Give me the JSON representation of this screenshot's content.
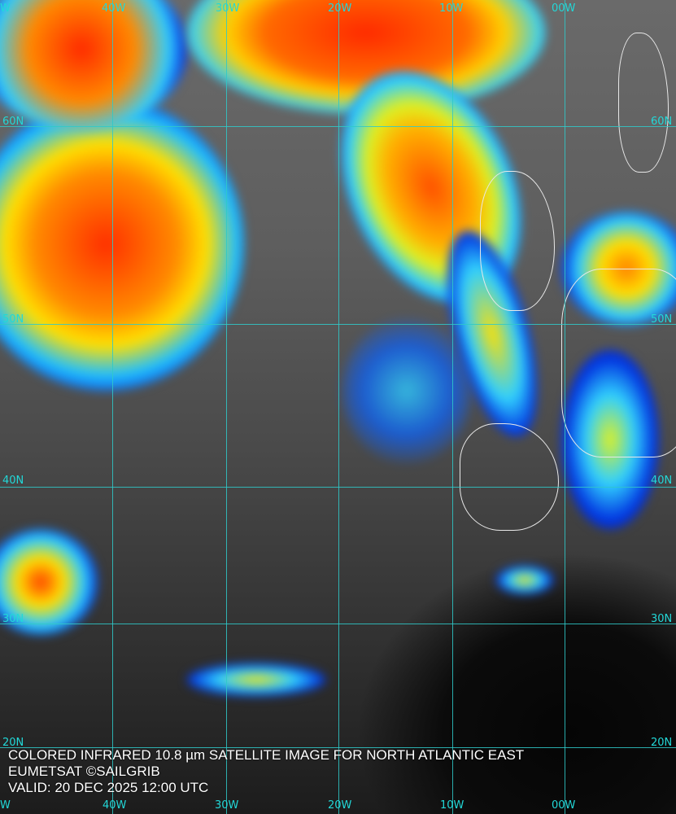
{
  "caption": {
    "title": "COLORED INFRARED 10.8 µm SATELLITE IMAGE FOR NORTH ATLANTIC EAST",
    "credit": "EUMETSAT ©SAILGRIB",
    "valid": "VALID:  20 DEC 2025 12:00 UTC"
  },
  "longitude_labels_top": [
    "W",
    "40W",
    "30W",
    "20W",
    "10W",
    "00W"
  ],
  "longitude_labels_bottom": [
    "W",
    "40W",
    "30W",
    "20W",
    "10W",
    "00W"
  ],
  "latitude_labels_left": [
    "60N",
    "50N",
    "40N",
    "30N",
    "20N"
  ],
  "latitude_labels_right": [
    "60N",
    "50N",
    "40N",
    "30N",
    "20N"
  ],
  "colors": {
    "grid": "#2fc9c9",
    "label": "#22d8d8",
    "cold_cloud_high": "#ff2a00",
    "cold_cloud_mid": "#ffe000",
    "cold_cloud_low": "#00a0ff",
    "cold_cloud_edge": "#0010d0"
  }
}
